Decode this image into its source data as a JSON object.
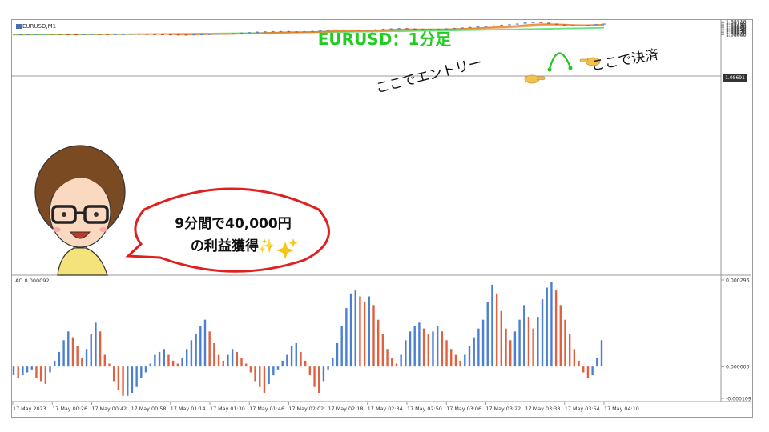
{
  "window": {
    "symbol_label": "EURUSD,M1"
  },
  "title": "EURUSD：1分足",
  "annotations": {
    "entry": "ここでエントリー",
    "exit": "ここで決済",
    "bubble_line1": "9分間で40,000円",
    "bubble_line2": "の利益獲得✨"
  },
  "colors": {
    "up": "#4a7fd4",
    "down": "#d9412b",
    "ema_fast": "#e8852a",
    "ema_slow": "#66e07a",
    "title": "#22cc22",
    "ao_up": "#4a7fd4",
    "ao_down": "#e0603f"
  },
  "icons": [
    "hand-pointing-right-icon",
    "hand-pointing-left-icon",
    "sparkles-icon",
    "character-illustration-icon",
    "speech-bubble-icon"
  ],
  "chart_data": [
    {
      "type": "candlestick",
      "ylim": [
        1.06595,
        1.08718
      ],
      "current_price_label": "1.08691",
      "y_ticks": [
        1.086,
        1.0861,
        1.0862,
        1.0863,
        1.0864,
        1.0865,
        1.0866,
        1.0867,
        1.0868,
        1.0869,
        1.087,
        1.0871
      ],
      "y_tick_labels": [
        "1.08600",
        "1.08610",
        "1.08620",
        "1.08630",
        "1.08640",
        "1.08650",
        "1.08660",
        "1.08670",
        "1.08680",
        "",
        "1.08700",
        "1.08710"
      ],
      "price_path": [
        1.08602,
        1.08604,
        1.08605,
        1.08606,
        1.08607,
        1.08606,
        1.08605,
        1.08604,
        1.08603,
        1.08605,
        1.08606,
        1.08605,
        1.08604,
        1.08605,
        1.08606,
        1.08607,
        1.08606,
        1.08605,
        1.08604,
        1.08603,
        1.08602,
        1.08601,
        1.086,
        1.08602,
        1.08604,
        1.08606,
        1.08608,
        1.08611,
        1.08614,
        1.08618,
        1.08622,
        1.08626,
        1.08628,
        1.0863,
        1.0863,
        1.08628,
        1.08626,
        1.08629,
        1.08632,
        1.08636,
        1.0864,
        1.08645,
        1.08643,
        1.08641,
        1.0864,
        1.08642,
        1.08645,
        1.08649,
        1.08653,
        1.08655,
        1.08652,
        1.08649,
        1.08647,
        1.08648,
        1.0865,
        1.08653,
        1.08657,
        1.08661,
        1.08665,
        1.08669,
        1.08674,
        1.08678,
        1.08683,
        1.08688,
        1.08694,
        1.08703,
        1.08706,
        1.08701,
        1.08694,
        1.08686,
        1.0868,
        1.08676,
        1.08678,
        1.08683,
        1.08689,
        1.08694
      ],
      "ema_fast_start": 1.08606,
      "ema_slow_start": 1.08604,
      "ema_slow_end": 1.08662
    },
    {
      "type": "bar",
      "name": "AO 0.000092",
      "ylim": [
        -0.000109,
        0.000296
      ],
      "y_tick_labels": [
        "0.000296",
        "0.000000",
        "-0.000109"
      ],
      "values": [
        -3e-05,
        -4e-05,
        -3e-05,
        -2e-05,
        -1e-05,
        -4e-05,
        -5e-05,
        -6e-05,
        -2e-05,
        2e-05,
        5e-05,
        9e-05,
        0.00012,
        0.0001,
        7e-05,
        3e-05,
        6e-05,
        0.00011,
        0.00015,
        0.00012,
        4e-05,
        1e-05,
        -5e-05,
        -8e-05,
        -0.0001,
        -0.0001,
        -9e-05,
        -7e-05,
        -4e-05,
        -2e-05,
        1e-05,
        4e-05,
        5e-05,
        6e-05,
        4e-05,
        2e-05,
        1e-05,
        3e-05,
        6e-05,
        9e-05,
        0.00011,
        0.00014,
        0.00016,
        0.00012,
        8e-05,
        4e-05,
        2e-05,
        4e-05,
        6e-05,
        5e-05,
        3e-05,
        1e-05,
        -2e-05,
        -5e-05,
        -7e-05,
        -9e-05,
        -6e-05,
        -3e-05,
        -1e-05,
        2e-05,
        4e-05,
        7e-05,
        8e-05,
        5e-05,
        2e-05,
        -3e-05,
        -7e-05,
        -9e-05,
        -5e-05,
        -1e-05,
        3e-05,
        8e-05,
        0.00014,
        0.0002,
        0.00025,
        0.00026,
        0.00024,
        0.00022,
        0.00024,
        0.00021,
        0.00016,
        0.00011,
        6e-05,
        3e-05,
        1e-05,
        4e-05,
        9e-05,
        0.00012,
        0.00014,
        0.00015,
        0.00013,
        0.00011,
        0.00012,
        0.00014,
        0.00012,
        9e-05,
        6e-05,
        4e-05,
        2e-05,
        4e-05,
        7e-05,
        0.0001,
        0.00013,
        0.00016,
        0.00022,
        0.00028,
        0.00025,
        0.00019,
        0.00013,
        9e-05,
        0.00012,
        0.00016,
        0.00021,
        0.00017,
        0.00013,
        0.00017,
        0.00023,
        0.00027,
        0.00029,
        0.00026,
        0.00021,
        0.00016,
        0.00011,
        6e-05,
        2e-05,
        -2e-05,
        -4e-05,
        -3e-05,
        3e-05,
        9e-05
      ]
    }
  ],
  "time_axis": [
    "17 May 2023",
    "17 May 00:26",
    "17 May 00:42",
    "17 May 00:58",
    "17 May 01:14",
    "17 May 01:30",
    "17 May 01:46",
    "17 May 02:02",
    "17 May 02:18",
    "17 May 02:34",
    "17 May 02:50",
    "17 May 03:06",
    "17 May 03:22",
    "17 May 03:38",
    "17 May 03:54",
    "17 May 04:10"
  ]
}
